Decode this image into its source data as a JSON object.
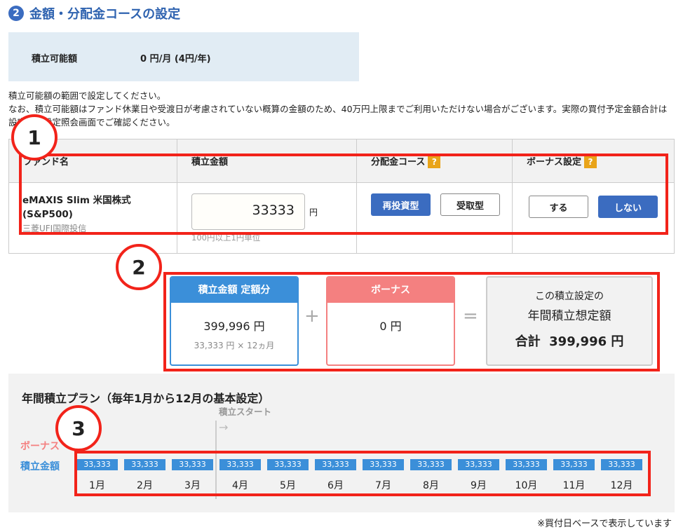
{
  "section": {
    "number": "2",
    "title": "金額・分配金コースの設定"
  },
  "available": {
    "label": "積立可能額",
    "value": "0 円/月 (4円/年)"
  },
  "notes": [
    "積立可能額の範囲で設定してください。",
    "なお、積立可能額はファンド休業日や受渡日が考慮されていない概算の金額のため、40万円上限までご利用いただけない場合がございます。実際の買付予定金額合計は設定後に設定照会画面でご確認ください。"
  ],
  "table": {
    "headers": {
      "fund": "ファンド名",
      "amount": "積立金額",
      "course": "分配金コース",
      "bonus": "ボーナス設定",
      "help": "?"
    },
    "fund_name": "eMAXIS Slim 米国株式(S&P500)",
    "company": "三菱UFJ国際投信",
    "amount_value": "33333",
    "unit": "円",
    "amount_hint": "100円以上1円単位",
    "course_options": [
      "再投資型",
      "受取型"
    ],
    "bonus_options": [
      "する",
      "しない"
    ]
  },
  "summary": {
    "fixed_label": "積立金額 定額分",
    "fixed_value": "399,996 円",
    "fixed_detail": "33,333 円 × 12ヵ月",
    "plus": "+",
    "bonus_label": "ボーナス",
    "bonus_value": "0 円",
    "equals": "=",
    "total_line1": "この積立設定の",
    "total_line2": "年間積立想定額",
    "total_label": "合計",
    "total_value": "399,996 円"
  },
  "plan": {
    "title": "年間積立プラン（毎年1月から12月の基本設定）",
    "start_label": "積立スタート",
    "arrow": "→",
    "bonus_row": "ボーナス",
    "amount_row": "積立金額",
    "months": [
      {
        "m": "1月",
        "v": "33,333"
      },
      {
        "m": "2月",
        "v": "33,333"
      },
      {
        "m": "3月",
        "v": "33,333"
      },
      {
        "m": "4月",
        "v": "33,333"
      },
      {
        "m": "5月",
        "v": "33,333"
      },
      {
        "m": "6月",
        "v": "33,333"
      },
      {
        "m": "7月",
        "v": "33,333"
      },
      {
        "m": "8月",
        "v": "33,333"
      },
      {
        "m": "9月",
        "v": "33,333"
      },
      {
        "m": "10月",
        "v": "33,333"
      },
      {
        "m": "11月",
        "v": "33,333"
      },
      {
        "m": "12月",
        "v": "33,333"
      }
    ],
    "footnote": "※買付日ベースで表示しています"
  },
  "annotations": [
    "1",
    "2",
    "3"
  ]
}
